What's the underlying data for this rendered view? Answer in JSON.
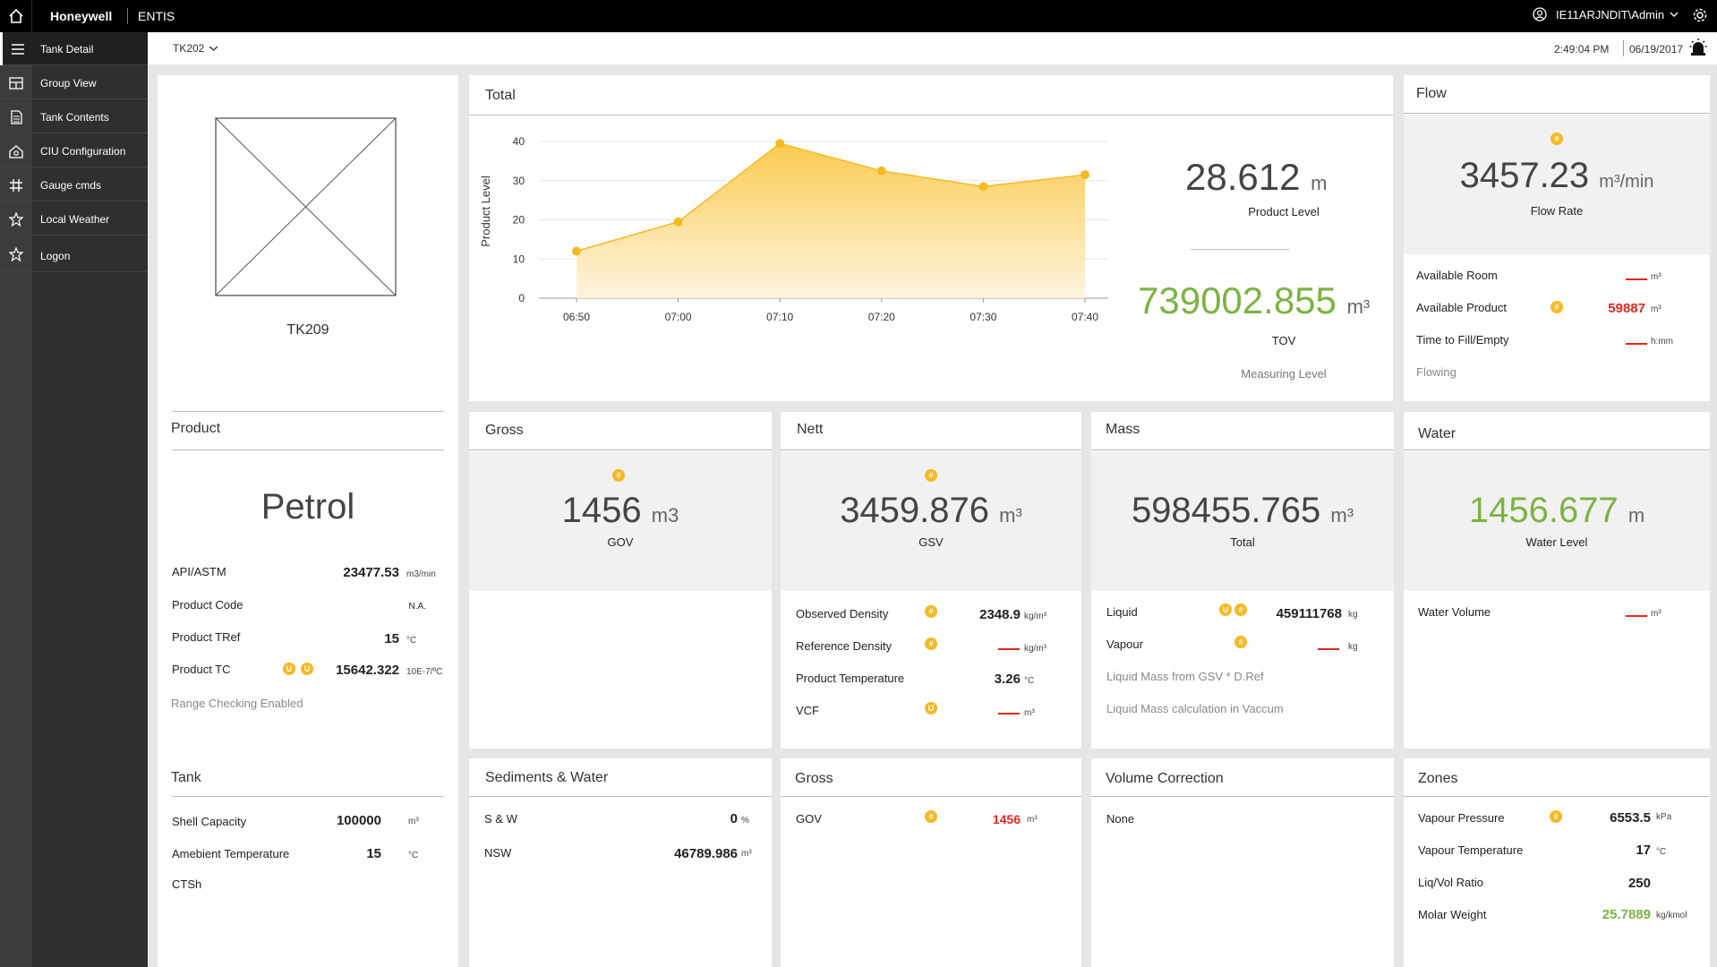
{
  "topbar": {
    "brand": "Honeywell",
    "product": "ENTIS",
    "user": "IE11ARJNDIT\\Admin",
    "icons": [
      "home-icon",
      "user-circle-icon",
      "chevron-down-icon",
      "gear-icon"
    ]
  },
  "sidebar": {
    "items": [
      {
        "label": "Tank Detail",
        "icon": "menu-icon"
      },
      {
        "label": "Group View",
        "icon": "grid-icon"
      },
      {
        "label": "Tank Contents",
        "icon": "document-icon"
      },
      {
        "label": "CIU Configuration",
        "icon": "config-icon"
      },
      {
        "label": "Gauge cmds",
        "icon": "hash-icon"
      },
      {
        "label": "Local Weather",
        "icon": "star-icon"
      },
      {
        "label": "Logon",
        "icon": "star-icon"
      }
    ]
  },
  "subheader": {
    "tank": "TK202",
    "time": "2:49:04 PM",
    "date": "06/19/2017"
  },
  "tank_card": {
    "name": "TK209"
  },
  "product": {
    "title": "Product",
    "name": "Petrol",
    "rows": [
      {
        "label": "API/ASTM",
        "value": "23477.53",
        "unit": "m3/min"
      },
      {
        "label": "Product Code",
        "value": "N.A.",
        "unit": ""
      },
      {
        "label": "Product TRef",
        "value": "15",
        "unit": "°C"
      },
      {
        "label": "Product TC",
        "value": "15642.322",
        "unit": "10E-7/ºC"
      }
    ],
    "note": "Range Checking Enabled"
  },
  "tank": {
    "title": "Tank",
    "rows": [
      {
        "label": "Shell Capacity",
        "value": "100000",
        "unit": "m³"
      },
      {
        "label": "Amebient Temperature",
        "value": "15",
        "unit": "°C"
      },
      {
        "label": "CTSh",
        "value": "",
        "unit": ""
      }
    ]
  },
  "total": {
    "title": "Total",
    "product_level": "28.612",
    "product_level_unit": "m",
    "product_level_label": "Product Level",
    "tov": "739002.855",
    "tov_unit": "m³",
    "tov_label": "TOV",
    "measuring": "Measuring Level"
  },
  "chart_data": {
    "type": "area",
    "categories": [
      "06:50",
      "07:00",
      "07:10",
      "07:20",
      "07:30",
      "07:40"
    ],
    "values": [
      12,
      19.5,
      39.5,
      32.5,
      28.5,
      31.5
    ],
    "ylabel": "Product Level",
    "ylim": [
      0,
      40
    ],
    "yticks": [
      "0",
      "10",
      "20",
      "30",
      "40"
    ],
    "grid": true,
    "color": "#f6b924"
  },
  "flow": {
    "title": "Flow",
    "value": "3457.23",
    "unit": "m³/min",
    "label": "Flow Rate",
    "rows": [
      {
        "label": "Available Room",
        "value": "",
        "unit": "m³"
      },
      {
        "label": "Available Product",
        "value": "59887",
        "unit": "m³"
      },
      {
        "label": "Time to Fill/Empty",
        "value": "",
        "unit": "h:mm"
      }
    ],
    "status": "Flowing"
  },
  "gross": {
    "title": "Gross",
    "value": "1456",
    "unit": "m3",
    "label": "GOV"
  },
  "nett": {
    "title": "Nett",
    "value": "3459.876",
    "unit": "m³",
    "label": "GSV",
    "rows": [
      {
        "label": "Observed Density",
        "value": "2348.9",
        "unit": "kg/m³"
      },
      {
        "label": "Reference Density",
        "value": "",
        "unit": "kg/m³"
      },
      {
        "label": "Product Temperature",
        "value": "3.26",
        "unit": "°C"
      },
      {
        "label": "VCF",
        "value": "",
        "unit": "m³"
      }
    ]
  },
  "mass": {
    "title": "Mass",
    "value": "598455.765",
    "unit": "m³",
    "label": "Total",
    "rows": [
      {
        "label": "Liquid",
        "value": "459111768",
        "unit": "kg"
      },
      {
        "label": "Vapour",
        "value": "",
        "unit": "kg"
      }
    ],
    "notes": [
      "Liquid Mass from GSV * D.Ref",
      "Liquid Mass calculation in Vaccum"
    ]
  },
  "water": {
    "title": "Water",
    "value": "1456.677",
    "unit": "m",
    "label": "Water Level",
    "rows": [
      {
        "label": "Water Volume",
        "value": "",
        "unit": "m³"
      }
    ]
  },
  "sediments": {
    "title": "Sediments & Water",
    "rows": [
      {
        "label": "S & W",
        "value": "0",
        "unit": "%"
      },
      {
        "label": "NSW",
        "value": "46789.986",
        "unit": "m³"
      }
    ]
  },
  "gross2": {
    "title": "Gross",
    "rows": [
      {
        "label": "GOV",
        "value": "1456",
        "unit": "m³"
      }
    ]
  },
  "volcorr": {
    "title": "Volume Correction",
    "value": "None"
  },
  "zones": {
    "title": "Zones",
    "rows": [
      {
        "label": "Vapour Pressure",
        "value": "6553.5",
        "unit": "kPa"
      },
      {
        "label": "Vapour Temperature",
        "value": "17",
        "unit": "°C"
      },
      {
        "label": "Liq/Vol Ratio",
        "value": "250",
        "unit": ""
      },
      {
        "label": "Molar Weight",
        "value": "25.7889",
        "unit": "kg/kmol"
      }
    ]
  },
  "badges": {
    "hash": "#",
    "u": "U"
  },
  "colors": {
    "accent": "#f6b924",
    "alarm": "#e0281e",
    "good": "#7cb342"
  }
}
